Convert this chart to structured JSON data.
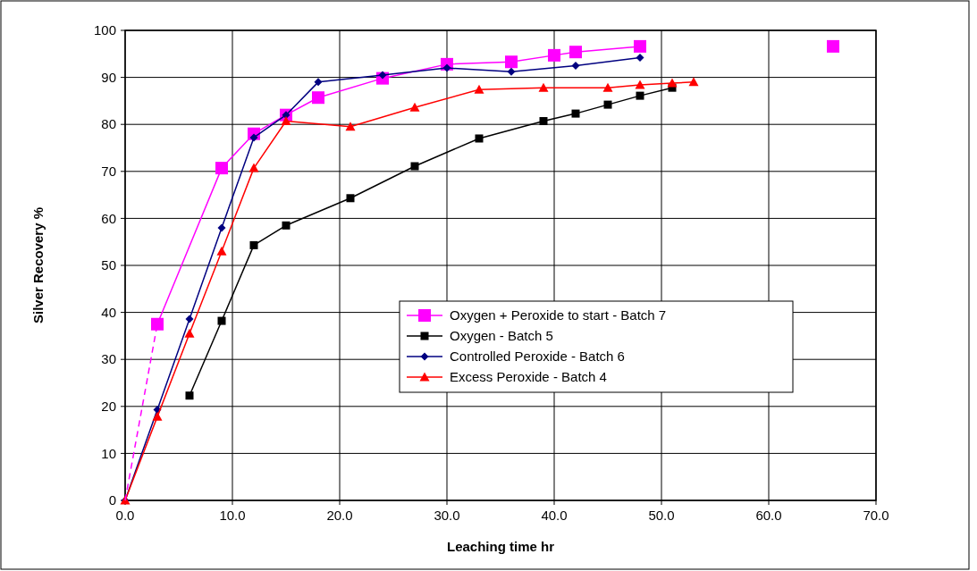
{
  "chart_data": {
    "type": "line",
    "xlabel": "Leaching time hr",
    "ylabel": "Silver Recovery %",
    "xlim": [
      0,
      70
    ],
    "xticks": [
      {
        "value": 0,
        "label": "0.0"
      },
      {
        "value": 10,
        "label": "10.0"
      },
      {
        "value": 20,
        "label": "20.0"
      },
      {
        "value": 30,
        "label": "30.0"
      },
      {
        "value": 40,
        "label": "40.0"
      },
      {
        "value": 50,
        "label": "50.0"
      },
      {
        "value": 60,
        "label": "60.0"
      },
      {
        "value": 70,
        "label": "70.0"
      }
    ],
    "ylim": [
      0,
      100
    ],
    "yticks": [
      0,
      10,
      20,
      30,
      40,
      50,
      60,
      70,
      80,
      90,
      100
    ],
    "grid": true,
    "legend": "center",
    "line_style": "solid",
    "series": [
      {
        "name": "Oxygen + Peroxide to start - Batch 7",
        "color": "#ff00ff",
        "marker": "square",
        "x": [
          3,
          9,
          12,
          15,
          18,
          24,
          30,
          36,
          40,
          42,
          48
        ],
        "values": [
          37.5,
          70.7,
          78,
          82,
          85.7,
          89.8,
          92.8,
          93.3,
          94.7,
          95.4,
          96.6
        ]
      },
      {
        "name": "Oxygen - Batch 5",
        "color": "#000000",
        "marker": "square",
        "x": [
          6,
          9,
          12,
          15,
          21,
          27,
          33,
          39,
          42,
          45,
          48,
          51
        ],
        "values": [
          22.3,
          38.2,
          54.3,
          58.5,
          64.3,
          71.1,
          77,
          80.7,
          82.3,
          84.2,
          86.1,
          87.8
        ]
      },
      {
        "name": "Controlled Peroxide - Batch 6",
        "color": "#000080",
        "marker": "diamond",
        "x": [
          0,
          3,
          6,
          9,
          12,
          15,
          18,
          24,
          30,
          36,
          42,
          48
        ],
        "values": [
          0,
          19.3,
          38.6,
          58,
          77.2,
          82,
          89,
          90.5,
          92,
          91.2,
          92.5,
          94.2
        ]
      },
      {
        "name": "Excess Peroxide - Batch 4",
        "color": "#ff0000",
        "marker": "triangle",
        "x": [
          0,
          3,
          6,
          9,
          12,
          15,
          21,
          27,
          33,
          39,
          45,
          48,
          51,
          53
        ],
        "values": [
          0,
          17.8,
          35.5,
          53,
          70.7,
          80.7,
          79.5,
          83.6,
          87.4,
          87.8,
          87.8,
          88.4,
          88.8,
          89
        ]
      },
      {
        "color": "#ff00ff",
        "marker": "none",
        "line_style": "dashed",
        "x": [
          0,
          3
        ],
        "values": [
          0,
          37.5
        ]
      },
      {
        "type": "scatter",
        "color": "#ff00ff",
        "marker": "square",
        "x": [
          66
        ],
        "values": [
          96.6
        ]
      }
    ]
  }
}
